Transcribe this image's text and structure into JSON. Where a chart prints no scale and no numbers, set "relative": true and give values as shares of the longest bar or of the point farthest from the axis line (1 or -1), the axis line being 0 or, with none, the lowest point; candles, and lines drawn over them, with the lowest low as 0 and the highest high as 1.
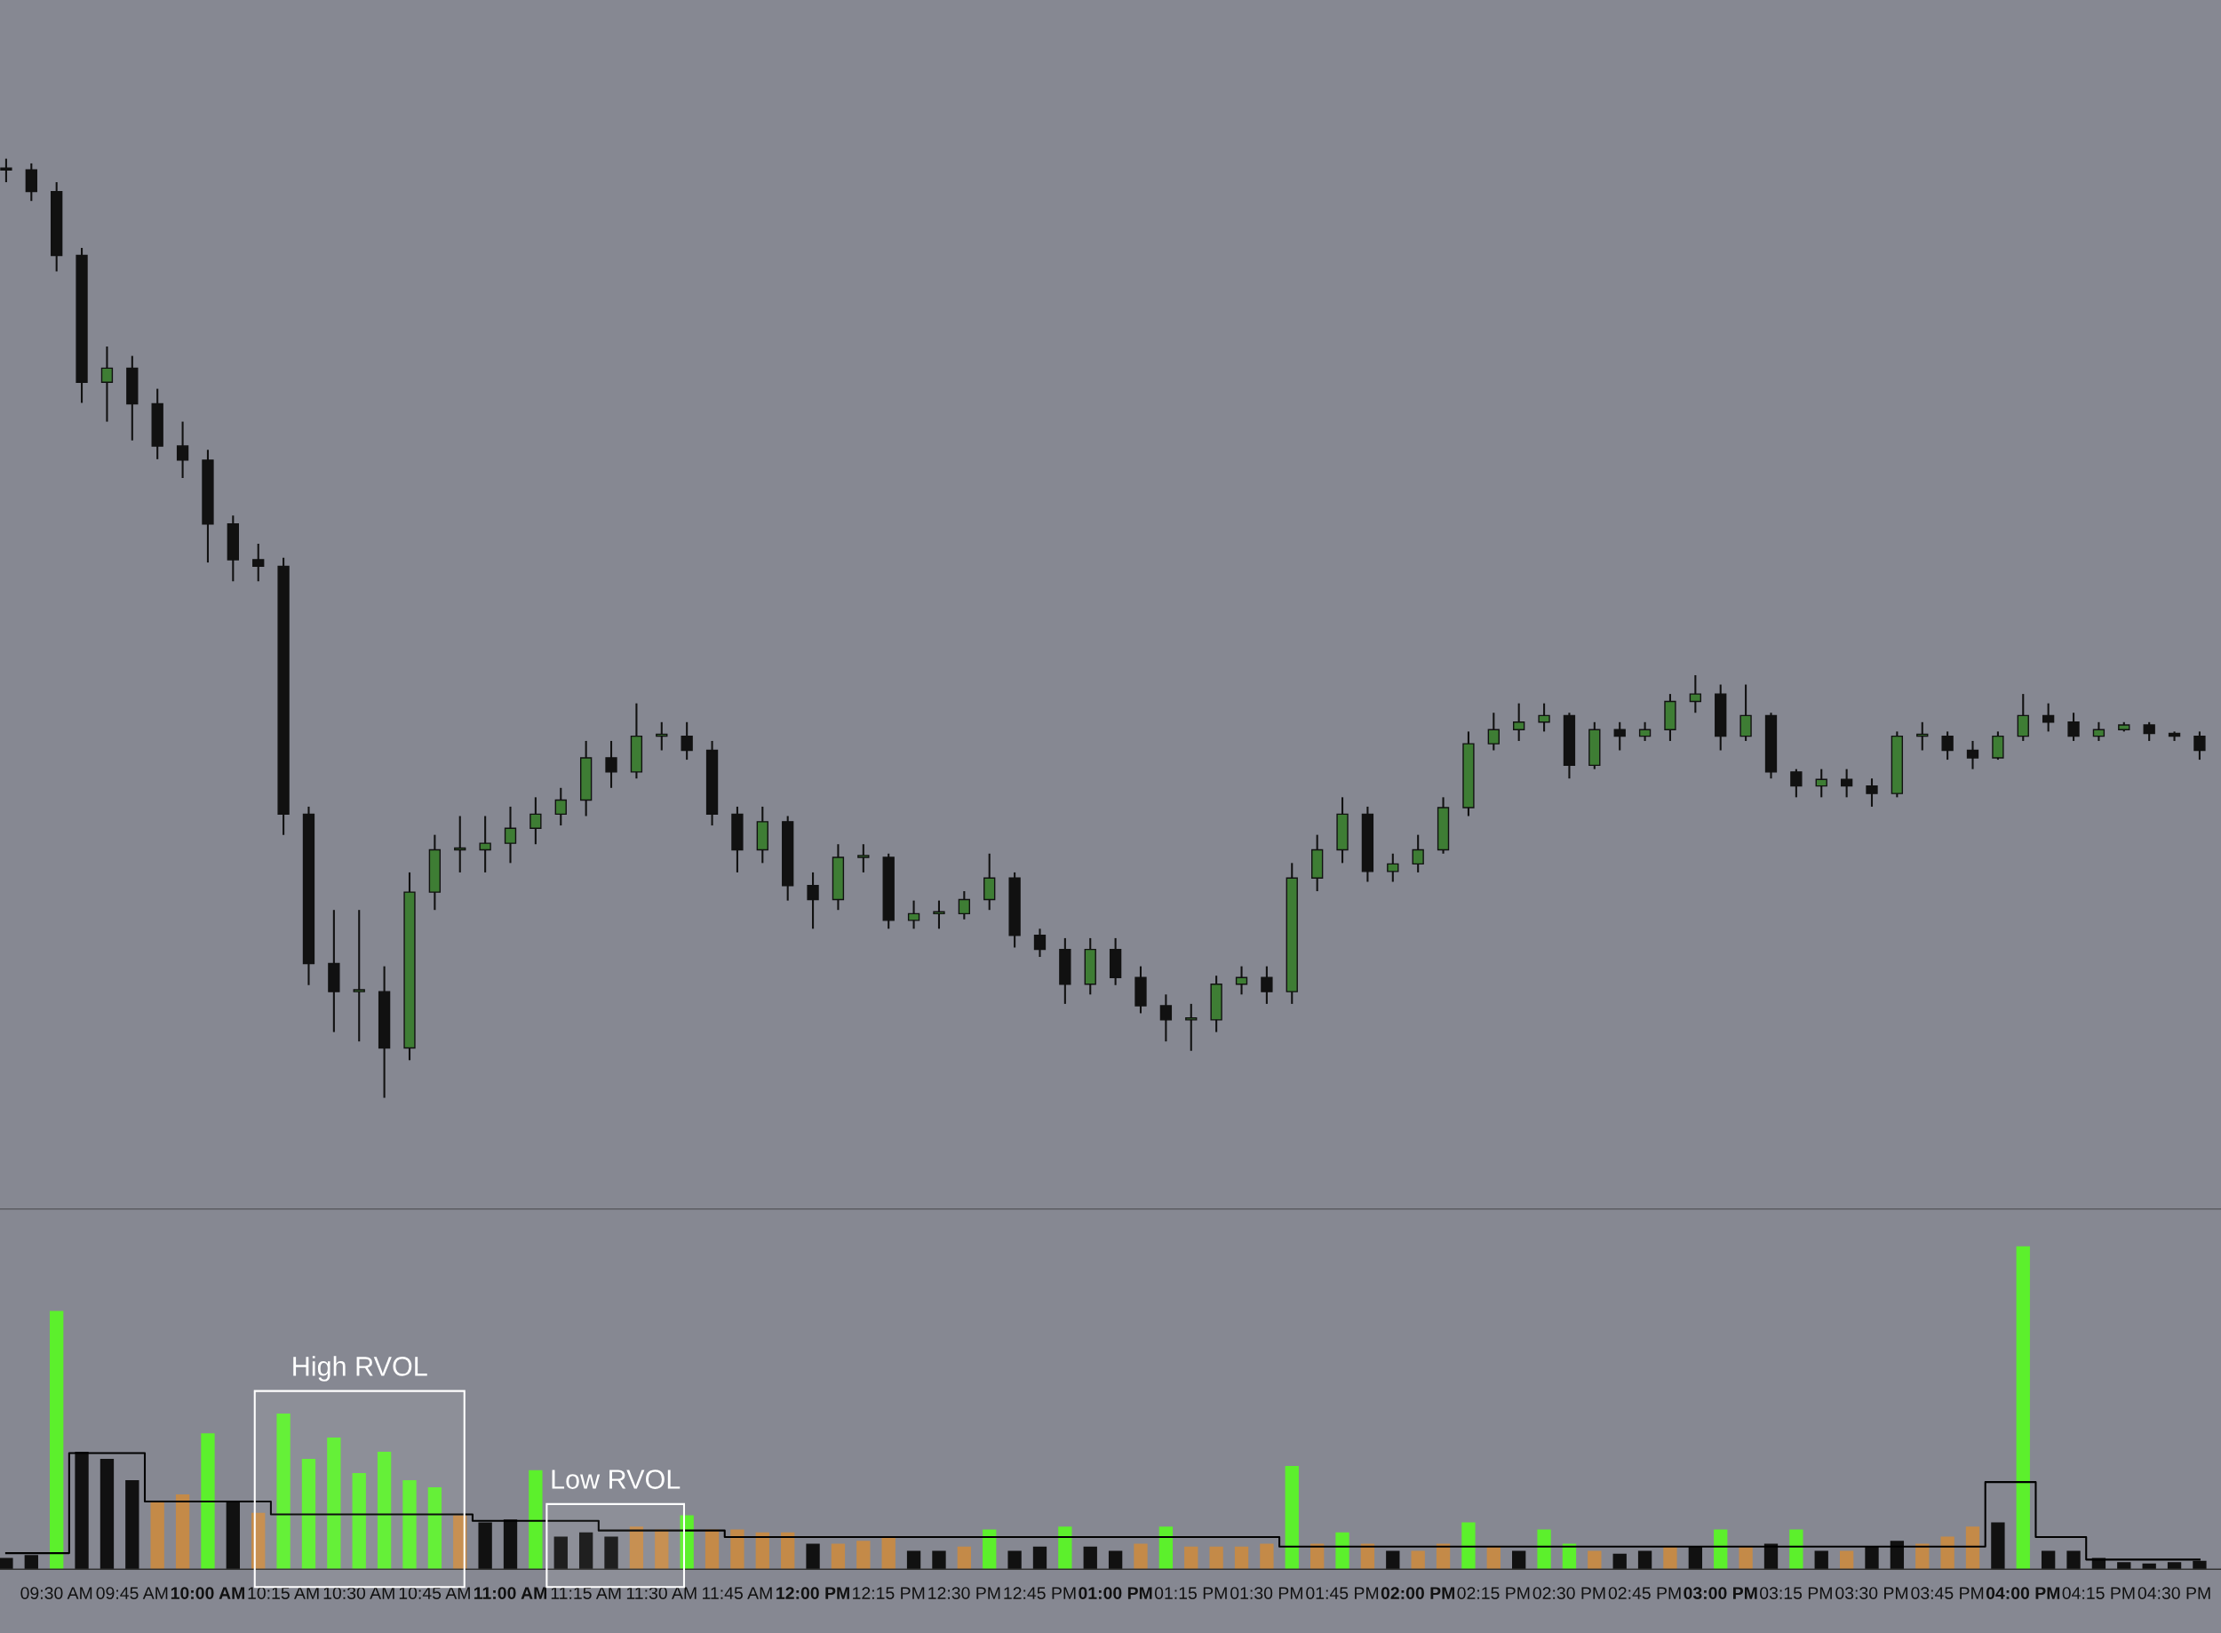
{
  "chart_data": [
    {
      "type": "candlestick",
      "relative": true,
      "tick_labels": false,
      "xlim": [
        9.313,
        16.654
      ],
      "x": [
        9.3333,
        9.4167,
        9.5,
        9.5833,
        9.6667,
        9.75,
        9.8333,
        9.9167,
        10,
        10.0833,
        10.1667,
        10.25,
        10.3333,
        10.4167,
        10.5,
        10.5833,
        10.6667,
        10.75,
        10.8333,
        10.9167,
        11,
        11.0833,
        11.1667,
        11.25,
        11.3333,
        11.4167,
        11.5,
        11.5833,
        11.6667,
        11.75,
        11.8333,
        11.9167,
        12,
        12.0833,
        12.1667,
        12.25,
        12.3333,
        12.4167,
        12.5,
        12.5833,
        12.6667,
        12.75,
        12.8333,
        12.9167,
        13,
        13.0833,
        13.1667,
        13.25,
        13.3333,
        13.4167,
        13.5,
        13.5833,
        13.6667,
        13.75,
        13.8333,
        13.9167,
        14,
        14.0833,
        14.1667,
        14.25,
        14.3333,
        14.4167,
        14.5,
        14.5833,
        14.6667,
        14.75,
        14.8333,
        14.9167,
        15,
        15.0833,
        15.1667,
        15.25,
        15.3333,
        15.4167,
        15.5,
        15.5833,
        15.6667,
        15.75,
        15.8333,
        15.9167,
        16,
        16.0833,
        16.1667,
        16.25,
        16.3333,
        16.4167,
        16.5,
        16.5833
      ],
      "ohlc": [
        [
          0.99,
          1.0,
          0.975,
          0.988
        ],
        [
          0.988,
          0.995,
          0.955,
          0.965
        ],
        [
          0.965,
          0.975,
          0.88,
          0.897
        ],
        [
          0.897,
          0.905,
          0.74,
          0.762
        ],
        [
          0.762,
          0.8,
          0.72,
          0.777
        ],
        [
          0.777,
          0.79,
          0.7,
          0.739
        ],
        [
          0.739,
          0.755,
          0.68,
          0.694
        ],
        [
          0.694,
          0.72,
          0.66,
          0.679
        ],
        [
          0.679,
          0.69,
          0.57,
          0.611
        ],
        [
          0.611,
          0.62,
          0.55,
          0.573
        ],
        [
          0.573,
          0.59,
          0.55,
          0.566
        ],
        [
          0.566,
          0.575,
          0.28,
          0.302
        ],
        [
          0.302,
          0.31,
          0.12,
          0.143
        ],
        [
          0.143,
          0.2,
          0.07,
          0.113
        ],
        [
          0.113,
          0.2,
          0.06,
          0.113
        ],
        [
          0.113,
          0.14,
          0,
          0.053
        ],
        [
          0.053,
          0.24,
          0.04,
          0.219
        ],
        [
          0.219,
          0.28,
          0.2,
          0.264
        ],
        [
          0.264,
          0.3,
          0.24,
          0.264
        ],
        [
          0.264,
          0.3,
          0.24,
          0.271
        ],
        [
          0.271,
          0.31,
          0.25,
          0.287
        ],
        [
          0.287,
          0.32,
          0.27,
          0.302
        ],
        [
          0.302,
          0.33,
          0.29,
          0.317
        ],
        [
          0.317,
          0.38,
          0.3,
          0.362
        ],
        [
          0.362,
          0.38,
          0.33,
          0.347
        ],
        [
          0.347,
          0.42,
          0.34,
          0.385
        ],
        [
          0.385,
          0.4,
          0.37,
          0.385
        ],
        [
          0.385,
          0.4,
          0.36,
          0.37
        ],
        [
          0.37,
          0.38,
          0.29,
          0.302
        ],
        [
          0.302,
          0.31,
          0.24,
          0.264
        ],
        [
          0.264,
          0.31,
          0.25,
          0.294
        ],
        [
          0.294,
          0.3,
          0.21,
          0.226
        ],
        [
          0.226,
          0.24,
          0.18,
          0.211
        ],
        [
          0.211,
          0.27,
          0.2,
          0.256
        ],
        [
          0.256,
          0.27,
          0.24,
          0.256
        ],
        [
          0.256,
          0.26,
          0.18,
          0.189
        ],
        [
          0.189,
          0.21,
          0.18,
          0.196
        ],
        [
          0.196,
          0.21,
          0.18,
          0.196
        ],
        [
          0.196,
          0.22,
          0.19,
          0.211
        ],
        [
          0.211,
          0.26,
          0.2,
          0.234
        ],
        [
          0.234,
          0.24,
          0.16,
          0.173
        ],
        [
          0.173,
          0.18,
          0.15,
          0.158
        ],
        [
          0.158,
          0.17,
          0.1,
          0.121
        ],
        [
          0.121,
          0.17,
          0.11,
          0.158
        ],
        [
          0.158,
          0.17,
          0.12,
          0.128
        ],
        [
          0.128,
          0.14,
          0.09,
          0.098
        ],
        [
          0.098,
          0.11,
          0.06,
          0.083
        ],
        [
          0.083,
          0.1,
          0.05,
          0.083
        ],
        [
          0.083,
          0.13,
          0.07,
          0.121
        ],
        [
          0.121,
          0.14,
          0.11,
          0.128
        ],
        [
          0.128,
          0.14,
          0.1,
          0.113
        ],
        [
          0.113,
          0.25,
          0.1,
          0.234
        ],
        [
          0.234,
          0.28,
          0.22,
          0.264
        ],
        [
          0.264,
          0.32,
          0.25,
          0.302
        ],
        [
          0.302,
          0.31,
          0.23,
          0.241
        ],
        [
          0.241,
          0.26,
          0.23,
          0.249
        ],
        [
          0.249,
          0.28,
          0.24,
          0.264
        ],
        [
          0.264,
          0.32,
          0.26,
          0.309
        ],
        [
          0.309,
          0.39,
          0.3,
          0.377
        ],
        [
          0.377,
          0.41,
          0.37,
          0.392
        ],
        [
          0.392,
          0.42,
          0.38,
          0.4
        ],
        [
          0.4,
          0.42,
          0.39,
          0.407
        ],
        [
          0.407,
          0.41,
          0.34,
          0.354
        ],
        [
          0.354,
          0.4,
          0.35,
          0.392
        ],
        [
          0.392,
          0.4,
          0.37,
          0.385
        ],
        [
          0.385,
          0.4,
          0.38,
          0.392
        ],
        [
          0.392,
          0.43,
          0.38,
          0.422
        ],
        [
          0.422,
          0.45,
          0.41,
          0.43
        ],
        [
          0.43,
          0.44,
          0.37,
          0.385
        ],
        [
          0.385,
          0.44,
          0.38,
          0.407
        ],
        [
          0.407,
          0.41,
          0.34,
          0.347
        ],
        [
          0.347,
          0.35,
          0.32,
          0.332
        ],
        [
          0.332,
          0.35,
          0.32,
          0.339
        ],
        [
          0.339,
          0.35,
          0.32,
          0.332
        ],
        [
          0.332,
          0.34,
          0.31,
          0.324
        ],
        [
          0.324,
          0.39,
          0.32,
          0.385
        ],
        [
          0.385,
          0.4,
          0.37,
          0.385
        ],
        [
          0.385,
          0.39,
          0.36,
          0.37
        ],
        [
          0.37,
          0.38,
          0.35,
          0.362
        ],
        [
          0.362,
          0.39,
          0.36,
          0.385
        ],
        [
          0.385,
          0.43,
          0.38,
          0.407
        ],
        [
          0.407,
          0.42,
          0.39,
          0.4
        ],
        [
          0.4,
          0.41,
          0.38,
          0.385
        ],
        [
          0.385,
          0.4,
          0.38,
          0.392
        ],
        [
          0.392,
          0.4,
          0.39,
          0.397
        ],
        [
          0.397,
          0.4,
          0.38,
          0.388
        ],
        [
          0.388,
          0.39,
          0.38,
          0.385
        ],
        [
          0.385,
          0.39,
          0.36,
          0.37
        ]
      ]
    },
    {
      "type": "bar",
      "relative": true,
      "tick_labels": "x",
      "xlim": [
        9.313,
        16.654
      ],
      "x": [
        9.3333,
        9.4167,
        9.5,
        9.5833,
        9.6667,
        9.75,
        9.8333,
        9.9167,
        10,
        10.0833,
        10.1667,
        10.25,
        10.3333,
        10.4167,
        10.5,
        10.5833,
        10.6667,
        10.75,
        10.8333,
        10.9167,
        11,
        11.0833,
        11.1667,
        11.25,
        11.3333,
        11.4167,
        11.5,
        11.5833,
        11.6667,
        11.75,
        11.8333,
        11.9167,
        12,
        12.0833,
        12.1667,
        12.25,
        12.3333,
        12.4167,
        12.5,
        12.5833,
        12.6667,
        12.75,
        12.8333,
        12.9167,
        13,
        13.0833,
        13.1667,
        13.25,
        13.3333,
        13.4167,
        13.5,
        13.5833,
        13.6667,
        13.75,
        13.8333,
        13.9167,
        14,
        14.0833,
        14.1667,
        14.25,
        14.3333,
        14.4167,
        14.5,
        14.5833,
        14.6667,
        14.75,
        14.8333,
        14.9167,
        15,
        15.0833,
        15.1667,
        15.25,
        15.3333,
        15.4167,
        15.5,
        15.5833,
        15.6667,
        15.75,
        15.8333,
        15.9167,
        16,
        16.0833,
        16.1667,
        16.25,
        16.3333,
        16.4167,
        16.5,
        16.5833
      ],
      "xticks": [
        {
          "value": 9.5,
          "label": "09:30 AM"
        },
        {
          "value": 9.75,
          "label": "09:45 AM"
        },
        {
          "value": 10,
          "label": "10:00 AM"
        },
        {
          "value": 10.25,
          "label": "10:15 AM"
        },
        {
          "value": 10.5,
          "label": "10:30 AM"
        },
        {
          "value": 10.75,
          "label": "10:45 AM"
        },
        {
          "value": 11,
          "label": "11:00 AM"
        },
        {
          "value": 11.25,
          "label": "11:15 AM"
        },
        {
          "value": 11.5,
          "label": "11:30 AM"
        },
        {
          "value": 11.75,
          "label": "11:45 AM"
        },
        {
          "value": 12,
          "label": "12:00 PM"
        },
        {
          "value": 12.25,
          "label": "12:15 PM"
        },
        {
          "value": 12.5,
          "label": "12:30 PM"
        },
        {
          "value": 12.75,
          "label": "12:45 PM"
        },
        {
          "value": 13,
          "label": "01:00 PM"
        },
        {
          "value": 13.25,
          "label": "01:15 PM"
        },
        {
          "value": 13.5,
          "label": "01:30 PM"
        },
        {
          "value": 13.75,
          "label": "01:45 PM"
        },
        {
          "value": 14,
          "label": "02:00 PM"
        },
        {
          "value": 14.25,
          "label": "02:15 PM"
        },
        {
          "value": 14.5,
          "label": "02:30 PM"
        },
        {
          "value": 14.75,
          "label": "02:45 PM"
        },
        {
          "value": 15,
          "label": "03:00 PM"
        },
        {
          "value": 15.25,
          "label": "03:15 PM"
        },
        {
          "value": 15.5,
          "label": "03:30 PM"
        },
        {
          "value": 15.75,
          "label": "03:45 PM"
        },
        {
          "value": 16,
          "label": "04:00 PM"
        },
        {
          "value": 16.25,
          "label": "04:15 PM"
        },
        {
          "value": 16.5,
          "label": "04:30 PM"
        }
      ],
      "series": [
        {
          "type": "bar",
          "values": [
            0.035,
            0.044,
            0.8,
            0.364,
            0.342,
            0.276,
            0.21,
            0.232,
            0.421,
            0.21,
            0.175,
            0.482,
            0.342,
            0.408,
            0.298,
            0.364,
            0.276,
            0.254,
            0.167,
            0.145,
            0.154,
            0.307,
            0.101,
            0.114,
            0.101,
            0.132,
            0.123,
            0.167,
            0.123,
            0.123,
            0.114,
            0.114,
            0.079,
            0.079,
            0.088,
            0.101,
            0.057,
            0.057,
            0.07,
            0.123,
            0.057,
            0.07,
            0.132,
            0.07,
            0.057,
            0.079,
            0.132,
            0.07,
            0.07,
            0.07,
            0.079,
            0.32,
            0.079,
            0.114,
            0.079,
            0.057,
            0.057,
            0.079,
            0.145,
            0.07,
            0.057,
            0.123,
            0.079,
            0.057,
            0.048,
            0.057,
            0.07,
            0.07,
            0.123,
            0.07,
            0.079,
            0.123,
            0.057,
            0.057,
            0.07,
            0.088,
            0.079,
            0.101,
            0.132,
            0.145,
            1.0,
            0.057,
            0.057,
            0.035,
            0.022,
            0.018,
            0.022,
            0.026
          ],
          "colors": [
            "#111111",
            "#111111",
            "#5cf02c",
            "#111111",
            "#111111",
            "#111111",
            "#c48a48",
            "#c48a48",
            "#5cf02c",
            "#111111",
            "#c48a48",
            "#5cf02c",
            "#5cf02c",
            "#5cf02c",
            "#5cf02c",
            "#5cf02c",
            "#5cf02c",
            "#5cf02c",
            "#c48a48",
            "#111111",
            "#111111",
            "#5cf02c",
            "#111111",
            "#111111",
            "#111111",
            "#c48a48",
            "#c48a48",
            "#5cf02c",
            "#c48a48",
            "#c48a48",
            "#c48a48",
            "#c48a48",
            "#111111",
            "#c48a48",
            "#c48a48",
            "#c48a48",
            "#111111",
            "#111111",
            "#c48a48",
            "#5cf02c",
            "#111111",
            "#111111",
            "#5cf02c",
            "#111111",
            "#111111",
            "#c48a48",
            "#5cf02c",
            "#c48a48",
            "#c48a48",
            "#c48a48",
            "#c48a48",
            "#5cf02c",
            "#c48a48",
            "#5cf02c",
            "#c48a48",
            "#111111",
            "#c48a48",
            "#c48a48",
            "#5cf02c",
            "#c48a48",
            "#111111",
            "#5cf02c",
            "#5cf02c",
            "#c48a48",
            "#111111",
            "#111111",
            "#c48a48",
            "#111111",
            "#5cf02c",
            "#c48a48",
            "#111111",
            "#5cf02c",
            "#111111",
            "#c48a48",
            "#111111",
            "#111111",
            "#c48a48",
            "#c48a48",
            "#c48a48",
            "#111111",
            "#5cf02c",
            "#111111",
            "#111111",
            "#111111",
            "#111111",
            "#111111",
            "#111111",
            "#111111"
          ]
        },
        {
          "type": "step",
          "color": "#000000",
          "values": [
            0.05,
            0.05,
            0.05,
            0.36,
            0.36,
            0.36,
            0.21,
            0.21,
            0.21,
            0.21,
            0.21,
            0.17,
            0.17,
            0.17,
            0.17,
            0.17,
            0.17,
            0.17,
            0.17,
            0.15,
            0.15,
            0.15,
            0.15,
            0.15,
            0.12,
            0.12,
            0.12,
            0.12,
            0.12,
            0.1,
            0.1,
            0.1,
            0.1,
            0.1,
            0.1,
            0.1,
            0.1,
            0.1,
            0.1,
            0.1,
            0.1,
            0.1,
            0.1,
            0.1,
            0.1,
            0.1,
            0.1,
            0.1,
            0.1,
            0.1,
            0.1,
            0.07,
            0.07,
            0.07,
            0.07,
            0.07,
            0.07,
            0.07,
            0.07,
            0.07,
            0.07,
            0.07,
            0.07,
            0.07,
            0.07,
            0.07,
            0.07,
            0.07,
            0.07,
            0.07,
            0.07,
            0.07,
            0.07,
            0.07,
            0.07,
            0.07,
            0.07,
            0.07,
            0.07,
            0.27,
            0.27,
            0.1,
            0.1,
            0.03,
            0.03,
            0.03,
            0.03,
            0.03
          ]
        }
      ],
      "bands": [
        {
          "axis": "x",
          "from": 10.155,
          "to": 10.848,
          "label": "High RVOL",
          "color": "#ffffff"
        },
        {
          "axis": "x",
          "from": 11.12,
          "to": 11.574,
          "label": "Low RVOL",
          "color": "#ffffff"
        }
      ]
    }
  ]
}
